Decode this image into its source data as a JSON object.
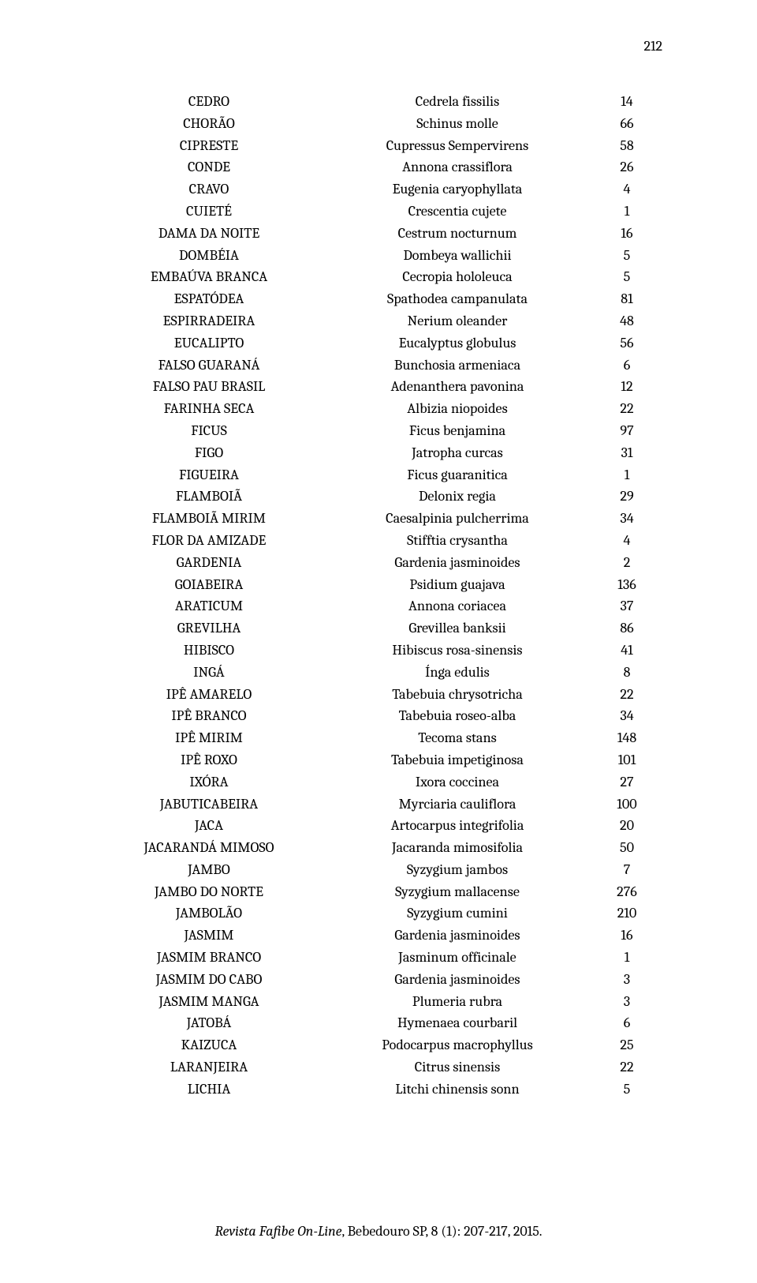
{
  "page_number": "212",
  "footer": {
    "journal_italic": "Revista Fafibe On-Line",
    "rest": ", Bebedouro SP, 8 (1): 207-217, 2015."
  },
  "rows": [
    {
      "common": "CEDRO",
      "sci": "Cedrela fissilis",
      "count": "14"
    },
    {
      "common": "CHORÃO",
      "sci": "Schinus molle",
      "count": "66"
    },
    {
      "common": "CIPRESTE",
      "sci": "Cupressus Sempervirens",
      "count": "58"
    },
    {
      "common": "CONDE",
      "sci": "Annona crassiflora",
      "count": "26"
    },
    {
      "common": "CRAVO",
      "sci": "Eugenia caryophyllata",
      "count": "4"
    },
    {
      "common": "CUIETÉ",
      "sci": "Crescentia cujete",
      "count": "1"
    },
    {
      "common": "DAMA DA NOITE",
      "sci": "Cestrum nocturnum",
      "count": "16"
    },
    {
      "common": "DOMBÉIA",
      "sci": "Dombeya wallichii",
      "count": "5"
    },
    {
      "common": "EMBAÚVA BRANCA",
      "sci": "Cecropia hololeuca",
      "count": "5"
    },
    {
      "common": "ESPATÓDEA",
      "sci": "Spathodea campanulata",
      "count": "81"
    },
    {
      "common": "ESPIRRADEIRA",
      "sci": "Nerium oleander",
      "count": "48"
    },
    {
      "common": "EUCALIPTO",
      "sci": "Eucalyptus globulus",
      "count": "56"
    },
    {
      "common": "FALSO GUARANÁ",
      "sci": "Bunchosia armeniaca",
      "count": "6"
    },
    {
      "common": "FALSO PAU BRASIL",
      "sci": "Adenanthera pavonina",
      "count": "12"
    },
    {
      "common": "FARINHA SECA",
      "sci": "Albizia niopoides",
      "count": "22"
    },
    {
      "common": "FICUS",
      "sci": "Ficus benjamina",
      "count": "97"
    },
    {
      "common": "FIGO",
      "sci": "Jatropha curcas",
      "count": "31"
    },
    {
      "common": "FIGUEIRA",
      "sci": "Ficus guaranitica",
      "count": "1"
    },
    {
      "common": "FLAMBOIÃ",
      "sci": "Delonix regia",
      "count": "29"
    },
    {
      "common": "FLAMBOIÃ MIRIM",
      "sci": "Caesalpinia pulcherrima",
      "count": "34"
    },
    {
      "common": "FLOR DA AMIZADE",
      "sci": "Stifftia crysantha",
      "count": "4"
    },
    {
      "common": "GARDENIA",
      "sci": "Gardenia jasminoides",
      "count": "2"
    },
    {
      "common": "GOIABEIRA",
      "sci": "Psidium guajava",
      "count": "136"
    },
    {
      "common": "ARATICUM",
      "sci": "Annona coriacea",
      "count": "37"
    },
    {
      "common": "GREVILHA",
      "sci": "Grevillea banksii",
      "count": "86"
    },
    {
      "common": "HIBISCO",
      "sci": "Hibiscus rosa-sinensis",
      "count": "41"
    },
    {
      "common": "INGÁ",
      "sci": "Ínga edulis",
      "count": "8"
    },
    {
      "common": "IPÊ AMARELO",
      "sci": "Tabebuia chrysotricha",
      "count": "22"
    },
    {
      "common": "IPÊ BRANCO",
      "sci": "Tabebuia roseo-alba",
      "count": "34"
    },
    {
      "common": "IPÊ MIRIM",
      "sci": "Tecoma stans",
      "count": "148"
    },
    {
      "common": "IPÊ ROXO",
      "sci": "Tabebuia impetiginosa",
      "count": "101"
    },
    {
      "common": "IXÓRA",
      "sci": "Ixora coccinea",
      "count": "27"
    },
    {
      "common": "JABUTICABEIRA",
      "sci": "Myrciaria cauliflora",
      "count": "100"
    },
    {
      "common": "JACA",
      "sci": "Artocarpus integrifolia",
      "count": "20"
    },
    {
      "common": "JACARANDÁ MIMOSO",
      "sci": "Jacaranda mimosifolia",
      "count": "50"
    },
    {
      "common": "JAMBO",
      "sci": "Syzygium jambos",
      "count": "7"
    },
    {
      "common": "JAMBO DO NORTE",
      "sci": "Syzygium mallacense",
      "count": "276"
    },
    {
      "common": "JAMBOLÃO",
      "sci": "Syzygium cumini",
      "count": "210"
    },
    {
      "common": "JASMIM",
      "sci": "Gardenia jasminoides",
      "count": "16"
    },
    {
      "common": "JASMIM BRANCO",
      "sci": "Jasminum officinale",
      "count": "1"
    },
    {
      "common": "JASMIM DO CABO",
      "sci": "Gardenia jasminoides",
      "count": "3"
    },
    {
      "common": "JASMIM MANGA",
      "sci": "Plumeria rubra",
      "count": "3"
    },
    {
      "common": "JATOBÁ",
      "sci": "Hymenaea courbaril",
      "count": "6"
    },
    {
      "common": "KAIZUCA",
      "sci": "Podocarpus macrophyllus",
      "count": "25"
    },
    {
      "common": "LARANJEIRA",
      "sci": "Citrus sinensis",
      "count": "22"
    },
    {
      "common": "LICHIA",
      "sci": "Litchi chinensis sonn",
      "count": "5"
    }
  ]
}
